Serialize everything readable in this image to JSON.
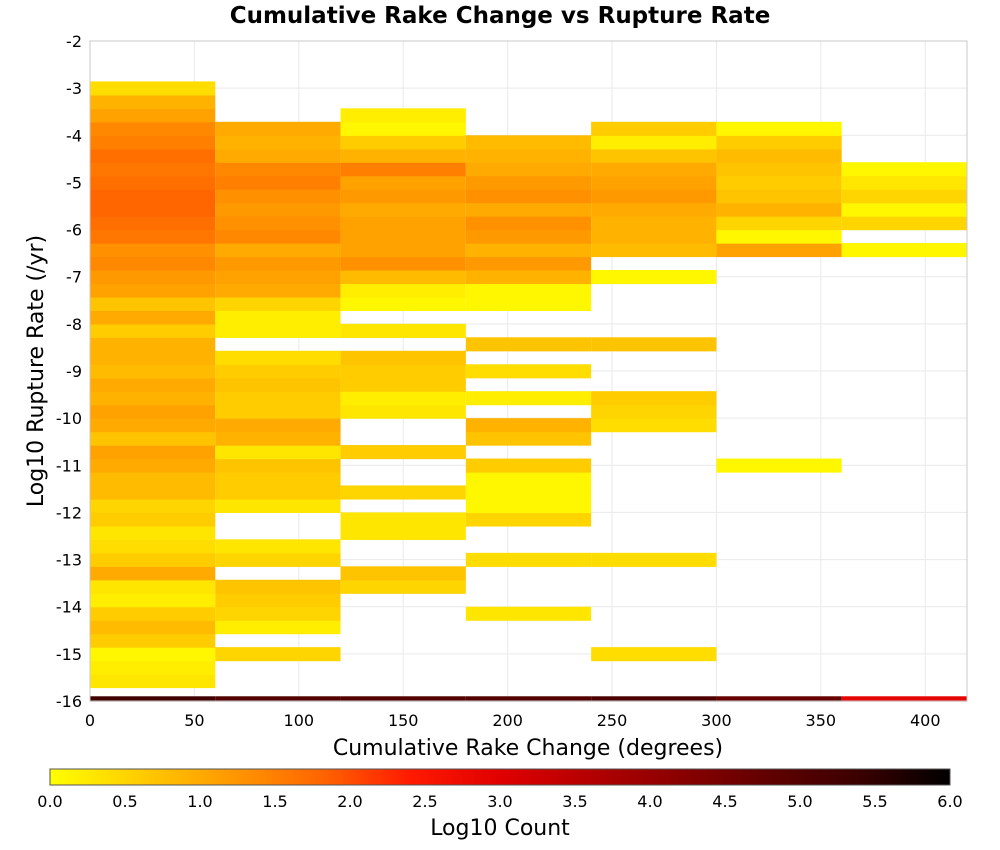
{
  "chart_data": {
    "type": "heatmap",
    "title": "Cumulative Rake Change vs Rupture Rate",
    "xlabel": "Cumulative Rake Change (degrees)",
    "ylabel": "Log10 Rupture Rate (/yr)",
    "xlim": [
      0,
      420
    ],
    "ylim": [
      -16,
      -2
    ],
    "x_ticks": [
      0,
      50,
      100,
      150,
      200,
      250,
      300,
      350,
      400
    ],
    "y_ticks": [
      -2,
      -3,
      -4,
      -5,
      -6,
      -7,
      -8,
      -9,
      -10,
      -11,
      -12,
      -13,
      -14,
      -15,
      -16
    ],
    "x_bin_edges": [
      0,
      60,
      120,
      180,
      240,
      300,
      360,
      420
    ],
    "y_bin_height": 0.286,
    "colorbar": {
      "label": "Log10 Count",
      "min": 0.0,
      "max": 6.0,
      "ticks": [
        "0.0",
        "0.5",
        "1.0",
        "1.5",
        "2.0",
        "2.5",
        "3.0",
        "3.5",
        "4.0",
        "4.5",
        "5.0",
        "5.5",
        "6.0"
      ],
      "colors": [
        "#ffff00",
        "#ffcc00",
        "#ff9900",
        "#ff6600",
        "#ff1a00",
        "#e00000",
        "#b40000",
        "#8a0000",
        "#600000",
        "#3a0000",
        "#000000"
      ]
    },
    "grid": true,
    "columns": [
      {
        "x0": 0,
        "x1": 60,
        "cells": [
          [
            -16.0,
            5.3
          ],
          [
            -15.714,
            0.3
          ],
          [
            -15.429,
            0.2
          ],
          [
            -15.143,
            0.1
          ],
          [
            -14.857,
            0.6
          ],
          [
            -14.571,
            0.8
          ],
          [
            -14.286,
            0.6
          ],
          [
            -14.0,
            0.2
          ],
          [
            -13.714,
            0.3
          ],
          [
            -13.429,
            1.0
          ],
          [
            -13.143,
            0.6
          ],
          [
            -12.857,
            0.4
          ],
          [
            -12.571,
            0.3
          ],
          [
            -12.286,
            0.6
          ],
          [
            -12.0,
            0.5
          ],
          [
            -11.714,
            0.8
          ],
          [
            -11.429,
            0.8
          ],
          [
            -11.143,
            1.0
          ],
          [
            -10.857,
            1.1
          ],
          [
            -10.571,
            0.7
          ],
          [
            -10.286,
            1.0
          ],
          [
            -10.0,
            1.1
          ],
          [
            -9.714,
            0.9
          ],
          [
            -9.429,
            1.0
          ],
          [
            -9.143,
            0.8
          ],
          [
            -8.857,
            0.9
          ],
          [
            -8.571,
            0.9
          ],
          [
            -8.286,
            0.6
          ],
          [
            -8.0,
            1.0
          ],
          [
            -7.714,
            0.7
          ],
          [
            -7.429,
            1.1
          ],
          [
            -7.143,
            1.2
          ],
          [
            -6.857,
            1.4
          ],
          [
            -6.571,
            1.3
          ],
          [
            -6.286,
            1.6
          ],
          [
            -6.0,
            1.7
          ],
          [
            -5.714,
            1.8
          ],
          [
            -5.429,
            1.8
          ],
          [
            -5.143,
            1.7
          ],
          [
            -4.857,
            1.6
          ],
          [
            -4.571,
            1.7
          ],
          [
            -4.286,
            1.5
          ],
          [
            -4.0,
            1.4
          ],
          [
            -3.714,
            1.1
          ],
          [
            -3.429,
            0.9
          ],
          [
            -3.143,
            0.4
          ]
        ]
      },
      {
        "x0": 60,
        "x1": 120,
        "cells": [
          [
            -16.0,
            5.0
          ],
          [
            -15.143,
            0.5
          ],
          [
            -14.571,
            0.2
          ],
          [
            -14.286,
            0.5
          ],
          [
            -14.0,
            0.6
          ],
          [
            -13.714,
            0.7
          ],
          [
            -13.143,
            0.5
          ],
          [
            -12.857,
            0.3
          ],
          [
            -12.0,
            0.3
          ],
          [
            -11.714,
            0.6
          ],
          [
            -11.429,
            0.6
          ],
          [
            -11.143,
            0.7
          ],
          [
            -10.857,
            0.3
          ],
          [
            -10.571,
            0.9
          ],
          [
            -10.286,
            1.0
          ],
          [
            -10.0,
            0.6
          ],
          [
            -9.714,
            0.6
          ],
          [
            -9.429,
            0.7
          ],
          [
            -9.143,
            0.6
          ],
          [
            -8.857,
            0.4
          ],
          [
            -8.286,
            0.2
          ],
          [
            -8.0,
            0.2
          ],
          [
            -7.714,
            0.5
          ],
          [
            -7.429,
            1.0
          ],
          [
            -7.143,
            1.1
          ],
          [
            -6.857,
            1.2
          ],
          [
            -6.571,
            1.0
          ],
          [
            -6.286,
            1.4
          ],
          [
            -6.0,
            1.3
          ],
          [
            -5.714,
            1.2
          ],
          [
            -5.429,
            1.3
          ],
          [
            -5.143,
            1.5
          ],
          [
            -4.857,
            1.4
          ],
          [
            -4.571,
            1.0
          ],
          [
            -4.286,
            0.9
          ],
          [
            -4.0,
            1.0
          ]
        ]
      },
      {
        "x0": 120,
        "x1": 180,
        "cells": [
          [
            -16.0,
            5.0
          ],
          [
            -13.714,
            0.5
          ],
          [
            -13.429,
            0.7
          ],
          [
            -12.571,
            0.3
          ],
          [
            -12.286,
            0.3
          ],
          [
            -11.714,
            0.5
          ],
          [
            -10.857,
            0.6
          ],
          [
            -10.0,
            0.3
          ],
          [
            -9.714,
            0.2
          ],
          [
            -9.429,
            0.6
          ],
          [
            -9.143,
            0.6
          ],
          [
            -8.857,
            0.7
          ],
          [
            -8.286,
            0.3
          ],
          [
            -7.714,
            0.1
          ],
          [
            -7.429,
            0.2
          ],
          [
            -7.143,
            0.8
          ],
          [
            -6.857,
            1.3
          ],
          [
            -6.571,
            1.1
          ],
          [
            -6.286,
            1.1
          ],
          [
            -6.0,
            1.1
          ],
          [
            -5.714,
            1.0
          ],
          [
            -5.429,
            1.2
          ],
          [
            -5.143,
            1.1
          ],
          [
            -4.857,
            1.5
          ],
          [
            -4.571,
            0.9
          ],
          [
            -4.286,
            0.6
          ],
          [
            -4.0,
            0.1
          ],
          [
            -3.714,
            0.2
          ]
        ]
      },
      {
        "x0": 180,
        "x1": 240,
        "cells": [
          [
            -16.0,
            5.0
          ],
          [
            -14.286,
            0.3
          ],
          [
            -13.143,
            0.4
          ],
          [
            -12.286,
            0.5
          ],
          [
            -12.0,
            0.1
          ],
          [
            -11.714,
            0.1
          ],
          [
            -11.429,
            0.1
          ],
          [
            -11.143,
            0.6
          ],
          [
            -10.571,
            0.7
          ],
          [
            -10.286,
            0.9
          ],
          [
            -9.714,
            0.2
          ],
          [
            -9.143,
            0.4
          ],
          [
            -8.571,
            0.7
          ],
          [
            -7.714,
            0.1
          ],
          [
            -7.429,
            0.1
          ],
          [
            -7.143,
            0.9
          ],
          [
            -6.857,
            1.2
          ],
          [
            -6.571,
            0.9
          ],
          [
            -6.286,
            1.2
          ],
          [
            -6.0,
            1.3
          ],
          [
            -5.714,
            1.0
          ],
          [
            -5.429,
            1.3
          ],
          [
            -5.143,
            1.2
          ],
          [
            -4.857,
            1.0
          ],
          [
            -4.571,
            0.9
          ],
          [
            -4.286,
            0.8
          ]
        ]
      },
      {
        "x0": 240,
        "x1": 300,
        "cells": [
          [
            -16.0,
            5.1
          ],
          [
            -15.143,
            0.4
          ],
          [
            -13.143,
            0.4
          ],
          [
            -10.286,
            0.4
          ],
          [
            -10.0,
            0.5
          ],
          [
            -9.714,
            0.6
          ],
          [
            -8.571,
            0.7
          ],
          [
            -7.143,
            0.1
          ],
          [
            -6.571,
            0.8
          ],
          [
            -6.286,
            0.9
          ],
          [
            -6.0,
            0.9
          ],
          [
            -5.714,
            1.0
          ],
          [
            -5.429,
            1.2
          ],
          [
            -5.143,
            1.1
          ],
          [
            -4.857,
            1.0
          ],
          [
            -4.571,
            0.7
          ],
          [
            -4.286,
            0.2
          ],
          [
            -4.0,
            0.6
          ]
        ]
      },
      {
        "x0": 300,
        "x1": 360,
        "cells": [
          [
            -16.0,
            4.7
          ],
          [
            -11.143,
            0.1
          ],
          [
            -6.571,
            1.1
          ],
          [
            -6.286,
            0.1
          ],
          [
            -6.0,
            0.5
          ],
          [
            -5.714,
            0.9
          ],
          [
            -5.429,
            0.7
          ],
          [
            -5.143,
            0.6
          ],
          [
            -4.857,
            0.7
          ],
          [
            -4.571,
            0.8
          ],
          [
            -4.286,
            0.6
          ],
          [
            -4.0,
            0.1
          ]
        ]
      },
      {
        "x0": 360,
        "x1": 420,
        "cells": [
          [
            -16.0,
            2.9
          ],
          [
            -6.571,
            0.1
          ],
          [
            -6.0,
            0.5
          ],
          [
            -5.714,
            0.1
          ],
          [
            -5.429,
            0.5
          ],
          [
            -5.143,
            0.3
          ],
          [
            -4.857,
            0.1
          ]
        ]
      }
    ]
  }
}
